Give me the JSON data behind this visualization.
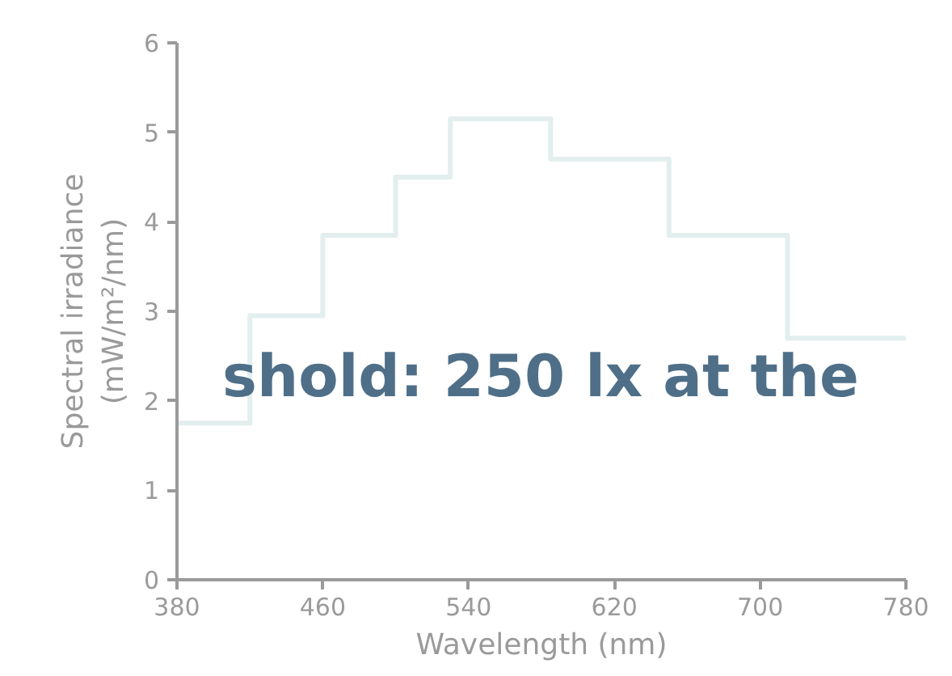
{
  "chart_data": {
    "type": "step",
    "xlabel": "Wavelength (nm)",
    "ylabel": "Spectral irradiance (mW/m²/nm)",
    "x": [
      380,
      420,
      460,
      500,
      530,
      585,
      650,
      715,
      780
    ],
    "series": [
      {
        "color": "#e3eeee",
        "values": [
          1.75,
          2.95,
          3.85,
          4.5,
          5.15,
          4.7,
          3.85,
          2.7,
          2.7
        ]
      }
    ],
    "xlim": [
      380,
      780
    ],
    "xticks": [
      380,
      460,
      540,
      620,
      700,
      780
    ],
    "ylim": [
      0,
      6
    ],
    "yticks": [
      0,
      1,
      2,
      3,
      4,
      5,
      6
    ],
    "grid": false,
    "marker": "none",
    "line_style": "solid",
    "annotations": [
      "shold: 250 lx at the"
    ]
  }
}
